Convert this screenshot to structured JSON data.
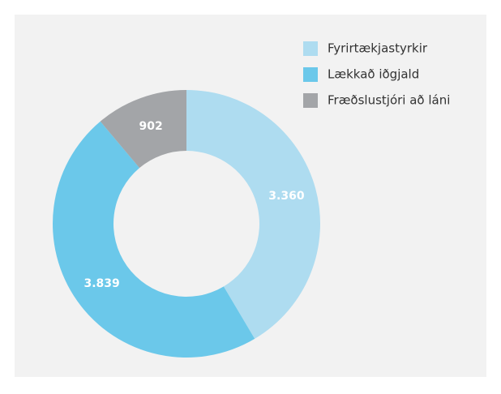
{
  "chart_data": {
    "type": "pie",
    "donut": true,
    "categories": [
      "Fyrirtækjastyrkir",
      "Lækkað iðgjald",
      "Fræðslustjóri að láni"
    ],
    "values": [
      3360,
      3839,
      902
    ],
    "value_labels": [
      "3.360",
      "3.839",
      "902"
    ],
    "colors": [
      "#aedcf0",
      "#6bc8ea",
      "#a3a5a8"
    ],
    "legend": "top-right"
  }
}
